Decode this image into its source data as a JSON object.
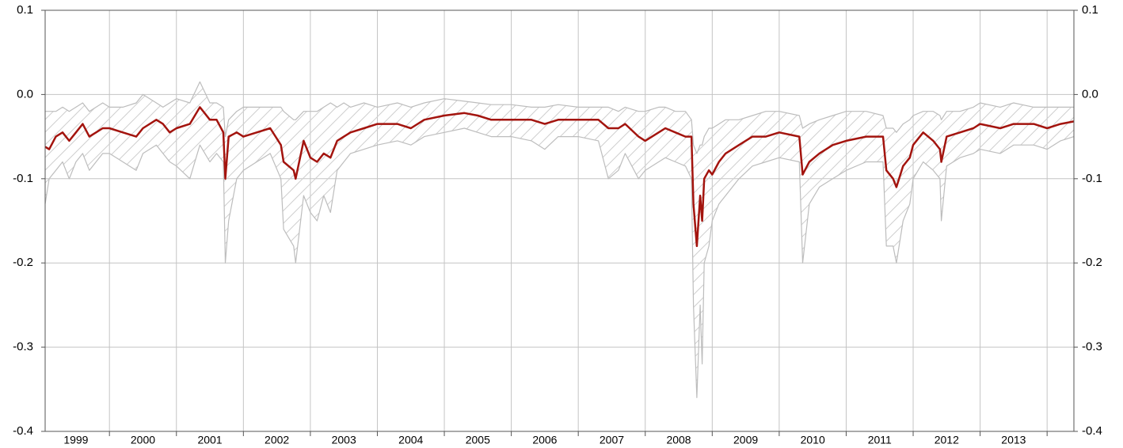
{
  "chart_data": {
    "type": "line",
    "x": [
      1999.04,
      1999.1,
      1999.2,
      1999.3,
      1999.4,
      1999.5,
      1999.6,
      1999.7,
      1999.8,
      1999.9,
      2000.0,
      2000.2,
      2000.4,
      2000.5,
      2000.7,
      2000.8,
      2000.9,
      2001.0,
      2001.2,
      2001.35,
      2001.5,
      2001.6,
      2001.7,
      2001.73,
      2001.78,
      2001.9,
      2002.0,
      2002.2,
      2002.4,
      2002.56,
      2002.6,
      2002.75,
      2002.78,
      2002.9,
      2003.0,
      2003.1,
      2003.2,
      2003.3,
      2003.4,
      2003.5,
      2003.6,
      2003.8,
      2004.0,
      2004.3,
      2004.5,
      2004.7,
      2005.0,
      2005.3,
      2005.5,
      2005.7,
      2006.0,
      2006.3,
      2006.5,
      2006.7,
      2007.0,
      2007.3,
      2007.45,
      2007.6,
      2007.7,
      2007.9,
      2008.0,
      2008.2,
      2008.3,
      2008.45,
      2008.6,
      2008.69,
      2008.72,
      2008.77,
      2008.82,
      2008.85,
      2008.88,
      2008.95,
      2009.0,
      2009.1,
      2009.2,
      2009.4,
      2009.6,
      2009.8,
      2010.0,
      2010.3,
      2010.35,
      2010.45,
      2010.6,
      2010.8,
      2011.0,
      2011.3,
      2011.55,
      2011.6,
      2011.7,
      2011.75,
      2011.85,
      2011.95,
      2012.0,
      2012.15,
      2012.3,
      2012.4,
      2012.42,
      2012.5,
      2012.7,
      2012.9,
      2013.0,
      2013.3,
      2013.5,
      2013.8,
      2014.0,
      2014.2,
      2014.4
    ],
    "series": [
      {
        "color": "#a3140e",
        "values": [
          -0.062,
          -0.065,
          -0.05,
          -0.045,
          -0.055,
          -0.045,
          -0.035,
          -0.05,
          -0.045,
          -0.04,
          -0.04,
          -0.045,
          -0.05,
          -0.04,
          -0.03,
          -0.035,
          -0.045,
          -0.04,
          -0.035,
          -0.015,
          -0.03,
          -0.03,
          -0.045,
          -0.1,
          -0.05,
          -0.045,
          -0.05,
          -0.045,
          -0.04,
          -0.06,
          -0.08,
          -0.09,
          -0.1,
          -0.055,
          -0.075,
          -0.08,
          -0.07,
          -0.075,
          -0.055,
          -0.05,
          -0.045,
          -0.04,
          -0.035,
          -0.035,
          -0.04,
          -0.03,
          -0.025,
          -0.022,
          -0.025,
          -0.03,
          -0.03,
          -0.03,
          -0.035,
          -0.03,
          -0.03,
          -0.03,
          -0.04,
          -0.04,
          -0.035,
          -0.05,
          -0.055,
          -0.045,
          -0.04,
          -0.045,
          -0.05,
          -0.05,
          -0.13,
          -0.18,
          -0.12,
          -0.15,
          -0.1,
          -0.09,
          -0.095,
          -0.08,
          -0.07,
          -0.06,
          -0.05,
          -0.05,
          -0.045,
          -0.05,
          -0.095,
          -0.08,
          -0.07,
          -0.06,
          -0.055,
          -0.05,
          -0.05,
          -0.09,
          -0.1,
          -0.11,
          -0.085,
          -0.075,
          -0.06,
          -0.045,
          -0.055,
          -0.065,
          -0.08,
          -0.05,
          -0.045,
          -0.04,
          -0.035,
          -0.04,
          -0.035,
          -0.035,
          -0.04,
          -0.035,
          -0.032
        ]
      },
      {
        "color": "#bdbdbd",
        "values": [
          -0.02,
          -0.02,
          -0.02,
          -0.015,
          -0.02,
          -0.015,
          -0.01,
          -0.02,
          -0.015,
          -0.01,
          -0.015,
          -0.015,
          -0.01,
          0.0,
          -0.01,
          -0.015,
          -0.01,
          -0.005,
          -0.01,
          0.015,
          -0.01,
          -0.01,
          -0.015,
          -0.05,
          -0.03,
          -0.02,
          -0.015,
          -0.015,
          -0.015,
          -0.015,
          -0.02,
          -0.03,
          -0.03,
          -0.02,
          -0.02,
          -0.02,
          -0.015,
          -0.01,
          -0.015,
          -0.01,
          -0.015,
          -0.01,
          -0.015,
          -0.01,
          -0.015,
          -0.01,
          -0.005,
          -0.008,
          -0.01,
          -0.012,
          -0.012,
          -0.015,
          -0.015,
          -0.012,
          -0.015,
          -0.015,
          -0.015,
          -0.02,
          -0.015,
          -0.02,
          -0.02,
          -0.015,
          -0.015,
          -0.02,
          -0.02,
          -0.03,
          -0.06,
          -0.07,
          -0.06,
          -0.06,
          -0.05,
          -0.04,
          -0.04,
          -0.035,
          -0.03,
          -0.03,
          -0.025,
          -0.02,
          -0.02,
          -0.025,
          -0.04,
          -0.035,
          -0.03,
          -0.025,
          -0.02,
          -0.02,
          -0.025,
          -0.04,
          -0.04,
          -0.045,
          -0.035,
          -0.03,
          -0.025,
          -0.02,
          -0.02,
          -0.025,
          -0.03,
          -0.02,
          -0.02,
          -0.015,
          -0.01,
          -0.015,
          -0.01,
          -0.015,
          -0.015,
          -0.015,
          -0.015
        ]
      },
      {
        "color": "#bdbdbd",
        "values": [
          -0.13,
          -0.1,
          -0.09,
          -0.08,
          -0.1,
          -0.08,
          -0.07,
          -0.09,
          -0.08,
          -0.07,
          -0.07,
          -0.08,
          -0.09,
          -0.07,
          -0.06,
          -0.07,
          -0.08,
          -0.085,
          -0.1,
          -0.06,
          -0.08,
          -0.07,
          -0.08,
          -0.2,
          -0.15,
          -0.1,
          -0.09,
          -0.08,
          -0.07,
          -0.1,
          -0.16,
          -0.18,
          -0.2,
          -0.12,
          -0.14,
          -0.15,
          -0.12,
          -0.14,
          -0.09,
          -0.08,
          -0.07,
          -0.065,
          -0.06,
          -0.055,
          -0.06,
          -0.05,
          -0.045,
          -0.04,
          -0.045,
          -0.05,
          -0.05,
          -0.055,
          -0.065,
          -0.05,
          -0.05,
          -0.055,
          -0.1,
          -0.09,
          -0.07,
          -0.1,
          -0.09,
          -0.08,
          -0.075,
          -0.08,
          -0.085,
          -0.1,
          -0.25,
          -0.36,
          -0.25,
          -0.32,
          -0.2,
          -0.18,
          -0.15,
          -0.13,
          -0.12,
          -0.1,
          -0.085,
          -0.08,
          -0.075,
          -0.08,
          -0.2,
          -0.13,
          -0.11,
          -0.1,
          -0.09,
          -0.08,
          -0.08,
          -0.18,
          -0.18,
          -0.2,
          -0.15,
          -0.13,
          -0.1,
          -0.08,
          -0.09,
          -0.1,
          -0.15,
          -0.085,
          -0.075,
          -0.07,
          -0.065,
          -0.07,
          -0.06,
          -0.06,
          -0.065,
          -0.055,
          -0.05
        ]
      }
    ],
    "fill_between": [
      1,
      2
    ],
    "hatch_color": "#cfcfcf",
    "xlim": [
      1999.04,
      2014.4
    ],
    "xticks": [
      {
        "value": 1999.5,
        "label": "1999"
      },
      {
        "value": 2000.5,
        "label": "2000"
      },
      {
        "value": 2001.5,
        "label": "2001"
      },
      {
        "value": 2002.5,
        "label": "2002"
      },
      {
        "value": 2003.5,
        "label": "2003"
      },
      {
        "value": 2004.5,
        "label": "2004"
      },
      {
        "value": 2005.5,
        "label": "2005"
      },
      {
        "value": 2006.5,
        "label": "2006"
      },
      {
        "value": 2007.5,
        "label": "2007"
      },
      {
        "value": 2008.5,
        "label": "2008"
      },
      {
        "value": 2009.5,
        "label": "2009"
      },
      {
        "value": 2010.5,
        "label": "2010"
      },
      {
        "value": 2011.5,
        "label": "2011"
      },
      {
        "value": 2012.5,
        "label": "2012"
      },
      {
        "value": 2013.5,
        "label": "2013"
      }
    ],
    "xgrid": [
      2000,
      2001,
      2002,
      2003,
      2004,
      2005,
      2006,
      2007,
      2008,
      2009,
      2010,
      2011,
      2012,
      2013,
      2014
    ],
    "ylim": [
      -0.4,
      0.1
    ],
    "yticks": [
      -0.4,
      -0.3,
      -0.2,
      -0.1,
      {
        "value": 0,
        "label": "0.0"
      },
      0.1
    ],
    "y2lim": [
      -0.4,
      0.1
    ],
    "y2ticks": [
      -0.4,
      -0.3,
      -0.2,
      -0.1,
      {
        "value": 0,
        "label": "0.0"
      },
      0.1
    ],
    "grid": true
  }
}
